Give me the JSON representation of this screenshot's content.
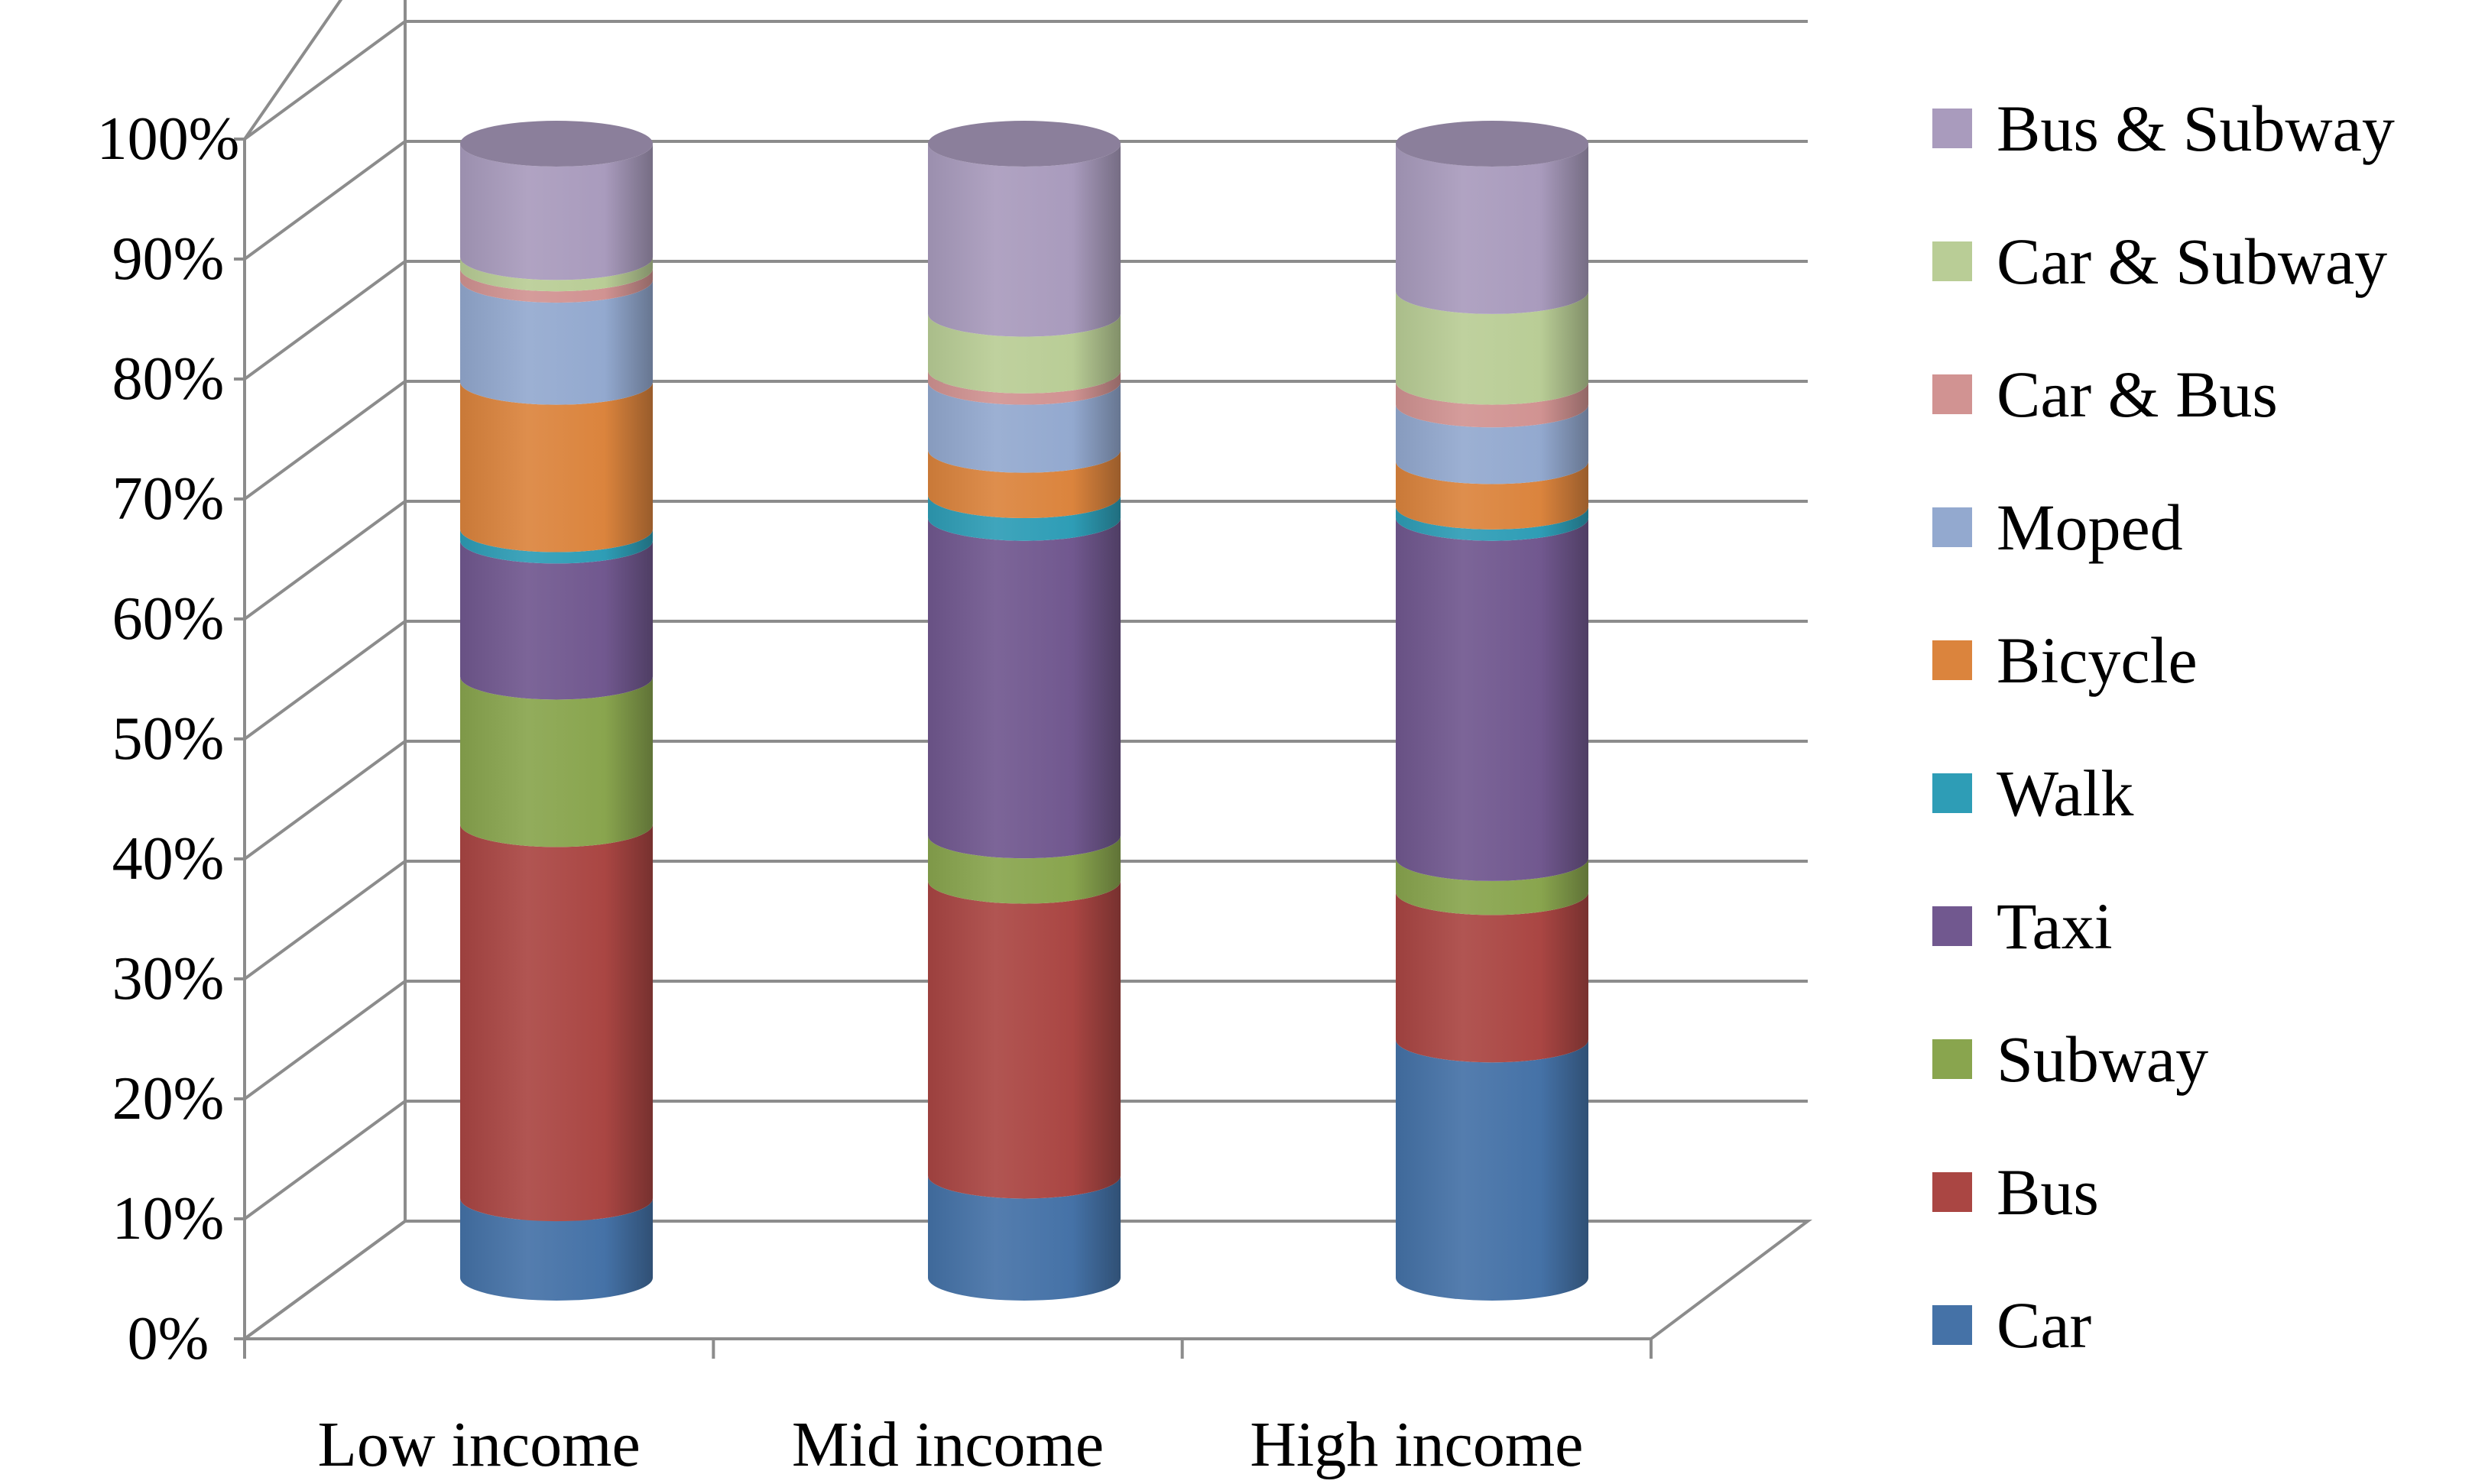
{
  "chart_data": {
    "type": "bar",
    "stacked": true,
    "percent_stacked": true,
    "three_d": "cylinder",
    "title": "",
    "xlabel": "",
    "ylabel": "",
    "ylim": [
      0,
      100
    ],
    "yticks": [
      "0%",
      "10%",
      "20%",
      "30%",
      "40%",
      "50%",
      "60%",
      "70%",
      "80%",
      "90%",
      "100%"
    ],
    "categories": [
      "Low income",
      "Mid income",
      "High income"
    ],
    "legend_position": "right",
    "grid": true,
    "series": [
      {
        "name": "Car",
        "color": "#4572A7",
        "values": [
          7,
          9,
          21
        ]
      },
      {
        "name": "Bus",
        "color": "#AA4643",
        "values": [
          33,
          26,
          13
        ]
      },
      {
        "name": "Subway",
        "color": "#89A54E",
        "values": [
          13,
          4,
          3
        ]
      },
      {
        "name": "Taxi",
        "color": "#71588F",
        "values": [
          12,
          28,
          30
        ]
      },
      {
        "name": "Walk",
        "color": "#2E9DB6",
        "values": [
          1,
          2,
          1
        ]
      },
      {
        "name": "Bicycle",
        "color": "#DB843D",
        "values": [
          13,
          4,
          4
        ]
      },
      {
        "name": "Moped",
        "color": "#93A9CF",
        "values": [
          9,
          6,
          5
        ]
      },
      {
        "name": "Car & Bus",
        "color": "#D19392",
        "values": [
          1,
          1,
          2
        ]
      },
      {
        "name": "Car & Subway",
        "color": "#B9CD96",
        "values": [
          1,
          5,
          8
        ]
      },
      {
        "name": "Bus & Subway",
        "color": "#A99BBD",
        "values": [
          10,
          15,
          13
        ]
      }
    ]
  }
}
